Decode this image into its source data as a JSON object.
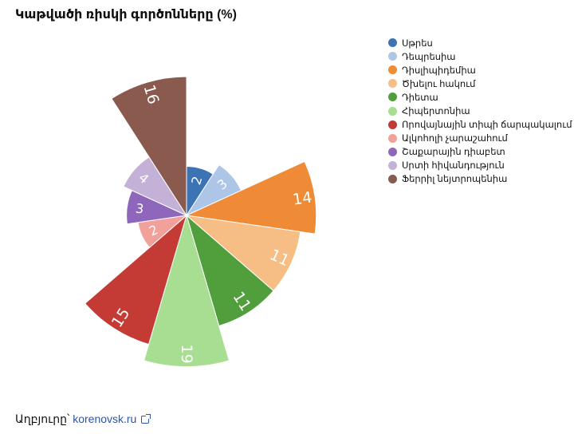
{
  "title": "Կաթվածի ռիսկի գործոնները (%)",
  "source": {
    "label": "Աղբյուրը՝",
    "link_text": "korenovsk.ru"
  },
  "chart_data": {
    "type": "pie",
    "variant": "polar-area",
    "title": "Կաթվածի ռիսկի գործոնները (%)",
    "categories": [
      "Սթրես",
      "Դեպրեսիա",
      "Դիսլիպիդեմիա",
      "Ծխելու հակում",
      "Դիետա",
      "Հիպերտոնիա",
      "Որովայնային տիպի ճարպակալում",
      "Ալկոհոլի չարաշահում",
      "Շաքարային դիաբետ",
      "Սրտի հիվանդություն",
      "Ֆերրիլ նեյտրոպենիա"
    ],
    "values": [
      2,
      3,
      14,
      11,
      11,
      19,
      15,
      2,
      3,
      4,
      16
    ],
    "colors": [
      "#3b73b4",
      "#adc6e7",
      "#ef8a36",
      "#f6bd85",
      "#519e3d",
      "#a8de91",
      "#c43a34",
      "#f2a09a",
      "#8e67bd",
      "#c3b1d7",
      "#8a5a4f"
    ],
    "legend_position": "right",
    "grid": false
  }
}
